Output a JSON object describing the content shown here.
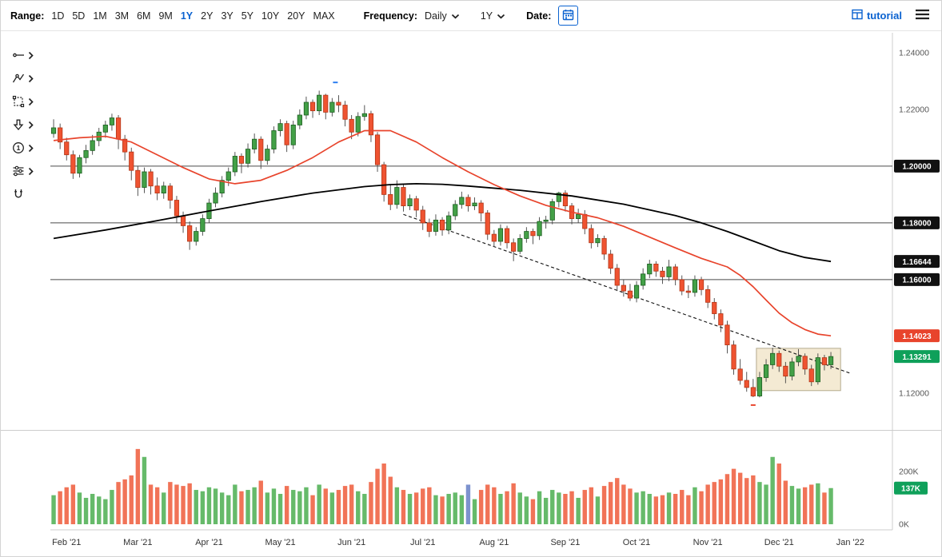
{
  "toolbar": {
    "range_label": "Range:",
    "range_options": [
      "1D",
      "5D",
      "1M",
      "3M",
      "6M",
      "9M",
      "1Y",
      "2Y",
      "3Y",
      "5Y",
      "10Y",
      "20Y",
      "MAX"
    ],
    "range_active": "1Y",
    "frequency_label": "Frequency:",
    "frequency_value": "Daily",
    "period_value": "1Y",
    "date_label": "Date:",
    "tutorial_label": "tutorial"
  },
  "side_toolbar": {
    "tools": [
      "line-tool",
      "polyline-tool",
      "rectangle-tool",
      "arrow-tool",
      "number-annotation-tool",
      "sliders-tool",
      "magnet-tool"
    ]
  },
  "chart_data": {
    "type": "candlestick+volume",
    "frequency": "Daily",
    "range": "1Y",
    "colors": {
      "up": "#43a047",
      "up_dark": "#1c5e20",
      "down": "#ef5331",
      "down_dark": "#b23617",
      "vol_up": "#55b35a",
      "vol_down": "#f06445",
      "ma_fast": "#e8442c",
      "ma_slow": "#000000",
      "badge_black": "#111111",
      "badge_red": "#e8442c",
      "badge_green": "#0fa05a"
    },
    "y_axis": {
      "max": 1.247,
      "min": 1.1076,
      "ticks": [
        {
          "label": "1.24000",
          "value": 1.24
        },
        {
          "label": "1.22000",
          "value": 1.22
        },
        {
          "label": "1.12000",
          "value": 1.12
        }
      ]
    },
    "levels": [
      {
        "value": 1.2,
        "label": "1.20000"
      },
      {
        "value": 1.18,
        "label": "1.18000"
      },
      {
        "value": 1.16,
        "label": "1.16000"
      }
    ],
    "badges": [
      {
        "label": "1.20000",
        "value": 1.2,
        "color": "#111111"
      },
      {
        "label": "1.18000",
        "value": 1.18,
        "color": "#111111"
      },
      {
        "label": "1.16644",
        "value": 1.16644,
        "color": "#111111"
      },
      {
        "label": "1.16000",
        "value": 1.16,
        "color": "#111111"
      },
      {
        "label": "1.14023",
        "value": 1.14023,
        "color": "#e8442c"
      },
      {
        "label": "1.13291",
        "value": 1.13291,
        "color": "#0fa05a"
      }
    ],
    "x_axis": {
      "labels": [
        {
          "label": "Feb '21",
          "idx": 2
        },
        {
          "label": "Mar '21",
          "idx": 13
        },
        {
          "label": "Apr '21",
          "idx": 24
        },
        {
          "label": "May '21",
          "idx": 35
        },
        {
          "label": "Jun '21",
          "idx": 46
        },
        {
          "label": "Jul '21",
          "idx": 57
        },
        {
          "label": "Aug '21",
          "idx": 68
        },
        {
          "label": "Sep '21",
          "idx": 79
        },
        {
          "label": "Oct '21",
          "idx": 90
        },
        {
          "label": "Nov '21",
          "idx": 101
        },
        {
          "label": "Dec '21",
          "idx": 112
        },
        {
          "label": "Jan '22",
          "idx": 123
        }
      ]
    },
    "trendline": {
      "start": {
        "idx": 54,
        "price": 1.183
      },
      "end": {
        "idx": 123,
        "price": 1.127
      }
    },
    "box": {
      "idx1": 108.5,
      "idx2": 121.5,
      "top": 1.1358,
      "bottom": 1.1209
    },
    "markers": [
      {
        "idx": 43.5,
        "price": 1.2295,
        "color": "#2d7ff0"
      },
      {
        "idx": 108,
        "price": 1.1158,
        "color": "#e8442c"
      }
    ],
    "ma_red": {
      "last_label": "1.14023",
      "points": [
        [
          0,
          1.209
        ],
        [
          4,
          1.21
        ],
        [
          8,
          1.2105
        ],
        [
          12,
          1.2085
        ],
        [
          16,
          1.204
        ],
        [
          20,
          1.1995
        ],
        [
          24,
          1.1955
        ],
        [
          28,
          1.1938
        ],
        [
          32,
          1.195
        ],
        [
          36,
          1.1985
        ],
        [
          40,
          1.203
        ],
        [
          44,
          1.2085
        ],
        [
          48,
          1.2125
        ],
        [
          52,
          1.2125
        ],
        [
          56,
          1.2085
        ],
        [
          60,
          1.203
        ],
        [
          64,
          1.198
        ],
        [
          68,
          1.1935
        ],
        [
          72,
          1.1895
        ],
        [
          76,
          1.1862
        ],
        [
          80,
          1.1838
        ],
        [
          84,
          1.1818
        ],
        [
          88,
          1.1788
        ],
        [
          92,
          1.175
        ],
        [
          96,
          1.1712
        ],
        [
          100,
          1.1675
        ],
        [
          104,
          1.1645
        ],
        [
          106,
          1.1615
        ],
        [
          108,
          1.1575
        ],
        [
          110,
          1.1528
        ],
        [
          112,
          1.1482
        ],
        [
          114,
          1.1448
        ],
        [
          116,
          1.1424
        ],
        [
          118,
          1.1408
        ],
        [
          120,
          1.1402
        ]
      ]
    },
    "ma_black": {
      "last_label": "1.16644",
      "points": [
        [
          0,
          1.1745
        ],
        [
          8,
          1.1775
        ],
        [
          16,
          1.1808
        ],
        [
          24,
          1.1842
        ],
        [
          32,
          1.1875
        ],
        [
          40,
          1.1905
        ],
        [
          48,
          1.1928
        ],
        [
          52,
          1.1935
        ],
        [
          56,
          1.1938
        ],
        [
          60,
          1.1936
        ],
        [
          64,
          1.193
        ],
        [
          72,
          1.1915
        ],
        [
          80,
          1.1895
        ],
        [
          88,
          1.1866
        ],
        [
          96,
          1.1826
        ],
        [
          100,
          1.18
        ],
        [
          104,
          1.177
        ],
        [
          108,
          1.1736
        ],
        [
          112,
          1.1702
        ],
        [
          116,
          1.1678
        ],
        [
          120,
          1.1664
        ]
      ]
    },
    "volume": {
      "grid_label": "200K",
      "grid_value": 200,
      "zero_label": "0K",
      "last_label": "137K",
      "last_value": 137,
      "scale_max": 333,
      "neutral_idx": 64,
      "neutral_color": "#6f86c9"
    },
    "candles": [
      [
        1.2115,
        1.2165,
        1.21,
        1.2135,
        110
      ],
      [
        1.2135,
        1.215,
        1.206,
        1.2085,
        125
      ],
      [
        1.2085,
        1.21,
        1.202,
        1.204,
        140
      ],
      [
        1.204,
        1.2055,
        1.1955,
        1.1975,
        150
      ],
      [
        1.1975,
        1.204,
        1.196,
        1.203,
        120
      ],
      [
        1.203,
        1.2075,
        1.201,
        1.2055,
        100
      ],
      [
        1.2055,
        1.211,
        1.204,
        1.209,
        115
      ],
      [
        1.209,
        1.2135,
        1.207,
        1.212,
        105
      ],
      [
        1.212,
        1.216,
        1.21,
        1.2145,
        95
      ],
      [
        1.2145,
        1.2185,
        1.2125,
        1.217,
        130
      ],
      [
        1.217,
        1.218,
        1.206,
        1.2095,
        160
      ],
      [
        1.2095,
        1.211,
        1.202,
        1.205,
        170
      ],
      [
        1.205,
        1.2065,
        1.195,
        1.1985,
        185
      ],
      [
        1.1985,
        1.2,
        1.1895,
        1.1925,
        285
      ],
      [
        1.1925,
        1.1995,
        1.1905,
        1.198,
        255
      ],
      [
        1.198,
        1.199,
        1.19,
        1.193,
        150
      ],
      [
        1.193,
        1.196,
        1.188,
        1.1905,
        140
      ],
      [
        1.1905,
        1.1945,
        1.1885,
        1.193,
        120
      ],
      [
        1.193,
        1.194,
        1.185,
        1.188,
        160
      ],
      [
        1.188,
        1.1895,
        1.18,
        1.1825,
        150
      ],
      [
        1.1825,
        1.184,
        1.1765,
        1.179,
        145
      ],
      [
        1.179,
        1.1805,
        1.1705,
        1.1735,
        155
      ],
      [
        1.1735,
        1.1785,
        1.172,
        1.177,
        130
      ],
      [
        1.177,
        1.183,
        1.1755,
        1.1815,
        125
      ],
      [
        1.1815,
        1.1885,
        1.18,
        1.187,
        140
      ],
      [
        1.187,
        1.1925,
        1.1855,
        1.1905,
        135
      ],
      [
        1.1905,
        1.1965,
        1.189,
        1.195,
        120
      ],
      [
        1.195,
        1.1995,
        1.193,
        1.198,
        110
      ],
      [
        1.198,
        1.205,
        1.1965,
        1.2035,
        150
      ],
      [
        1.2035,
        1.2045,
        1.1975,
        1.201,
        125
      ],
      [
        1.201,
        1.208,
        1.1995,
        1.206,
        130
      ],
      [
        1.206,
        1.2115,
        1.2045,
        1.2095,
        140
      ],
      [
        1.2095,
        1.2105,
        1.199,
        1.202,
        165
      ],
      [
        1.202,
        1.2075,
        1.2005,
        1.206,
        120
      ],
      [
        1.206,
        1.214,
        1.2045,
        1.2125,
        135
      ],
      [
        1.2125,
        1.2165,
        1.2105,
        1.215,
        115
      ],
      [
        1.215,
        1.216,
        1.205,
        1.2075,
        145
      ],
      [
        1.2075,
        1.216,
        1.206,
        1.2145,
        130
      ],
      [
        1.2145,
        1.22,
        1.213,
        1.218,
        125
      ],
      [
        1.218,
        1.2245,
        1.2165,
        1.2225,
        140
      ],
      [
        1.2225,
        1.2235,
        1.217,
        1.2195,
        110
      ],
      [
        1.2195,
        1.2266,
        1.218,
        1.225,
        150
      ],
      [
        1.225,
        1.2255,
        1.2165,
        1.219,
        135
      ],
      [
        1.219,
        1.224,
        1.2175,
        1.2225,
        120
      ],
      [
        1.2225,
        1.225,
        1.219,
        1.2215,
        130
      ],
      [
        1.2215,
        1.223,
        1.214,
        1.2165,
        145
      ],
      [
        1.2165,
        1.218,
        1.2095,
        1.212,
        150
      ],
      [
        1.212,
        1.219,
        1.2105,
        1.2175,
        125
      ],
      [
        1.2175,
        1.2215,
        1.216,
        1.2185,
        115
      ],
      [
        1.2185,
        1.2195,
        1.2085,
        1.211,
        160
      ],
      [
        1.211,
        1.212,
        1.198,
        1.2005,
        210
      ],
      [
        1.2005,
        1.2015,
        1.1875,
        1.19,
        230
      ],
      [
        1.19,
        1.1935,
        1.1845,
        1.1865,
        180
      ],
      [
        1.1865,
        1.195,
        1.185,
        1.1925,
        140
      ],
      [
        1.1925,
        1.1935,
        1.184,
        1.186,
        130
      ],
      [
        1.186,
        1.19,
        1.1845,
        1.1885,
        115
      ],
      [
        1.1885,
        1.1895,
        1.182,
        1.1845,
        120
      ],
      [
        1.1845,
        1.186,
        1.1775,
        1.18,
        135
      ],
      [
        1.18,
        1.1815,
        1.175,
        1.177,
        140
      ],
      [
        1.177,
        1.183,
        1.1755,
        1.181,
        110
      ],
      [
        1.181,
        1.182,
        1.1755,
        1.1775,
        105
      ],
      [
        1.1775,
        1.184,
        1.176,
        1.1825,
        115
      ],
      [
        1.1825,
        1.188,
        1.181,
        1.1865,
        120
      ],
      [
        1.1865,
        1.191,
        1.185,
        1.189,
        110
      ],
      [
        1.189,
        1.19,
        1.184,
        1.186,
        150
      ],
      [
        1.186,
        1.189,
        1.1845,
        1.187,
        95
      ],
      [
        1.187,
        1.188,
        1.1805,
        1.1835,
        130
      ],
      [
        1.1835,
        1.1845,
        1.174,
        1.176,
        150
      ],
      [
        1.176,
        1.1775,
        1.1715,
        1.1735,
        140
      ],
      [
        1.1735,
        1.1795,
        1.172,
        1.178,
        115
      ],
      [
        1.178,
        1.179,
        1.171,
        1.173,
        125
      ],
      [
        1.173,
        1.1745,
        1.1665,
        1.17,
        155
      ],
      [
        1.17,
        1.176,
        1.169,
        1.1745,
        120
      ],
      [
        1.1745,
        1.1785,
        1.173,
        1.177,
        105
      ],
      [
        1.177,
        1.178,
        1.1725,
        1.1755,
        95
      ],
      [
        1.1755,
        1.182,
        1.174,
        1.1805,
        125
      ],
      [
        1.1805,
        1.1825,
        1.178,
        1.181,
        100
      ],
      [
        1.181,
        1.1885,
        1.1795,
        1.1875,
        130
      ],
      [
        1.1875,
        1.191,
        1.1855,
        1.1905,
        120
      ],
      [
        1.1905,
        1.1915,
        1.184,
        1.186,
        115
      ],
      [
        1.186,
        1.187,
        1.1795,
        1.1815,
        125
      ],
      [
        1.1815,
        1.185,
        1.18,
        1.183,
        100
      ],
      [
        1.183,
        1.1845,
        1.176,
        1.178,
        130
      ],
      [
        1.178,
        1.1795,
        1.171,
        1.173,
        140
      ],
      [
        1.173,
        1.176,
        1.1715,
        1.1745,
        105
      ],
      [
        1.1745,
        1.1755,
        1.167,
        1.169,
        145
      ],
      [
        1.169,
        1.1705,
        1.162,
        1.164,
        160
      ],
      [
        1.164,
        1.1655,
        1.156,
        1.158,
        175
      ],
      [
        1.158,
        1.16,
        1.154,
        1.156,
        150
      ],
      [
        1.156,
        1.1585,
        1.1525,
        1.1535,
        135
      ],
      [
        1.1535,
        1.1595,
        1.152,
        1.158,
        120
      ],
      [
        1.158,
        1.164,
        1.1565,
        1.162,
        125
      ],
      [
        1.162,
        1.167,
        1.1605,
        1.1655,
        115
      ],
      [
        1.1655,
        1.1665,
        1.161,
        1.163,
        105
      ],
      [
        1.163,
        1.1645,
        1.1585,
        1.161,
        110
      ],
      [
        1.161,
        1.167,
        1.1595,
        1.1645,
        120
      ],
      [
        1.1645,
        1.1655,
        1.158,
        1.16,
        115
      ],
      [
        1.16,
        1.1615,
        1.1545,
        1.156,
        130
      ],
      [
        1.156,
        1.158,
        1.1535,
        1.1555,
        110
      ],
      [
        1.1555,
        1.1615,
        1.154,
        1.16,
        140
      ],
      [
        1.16,
        1.161,
        1.1545,
        1.1565,
        125
      ],
      [
        1.1565,
        1.158,
        1.15,
        1.152,
        150
      ],
      [
        1.152,
        1.1535,
        1.146,
        1.148,
        160
      ],
      [
        1.148,
        1.1495,
        1.1415,
        1.144,
        170
      ],
      [
        1.144,
        1.1455,
        1.134,
        1.137,
        190
      ],
      [
        1.137,
        1.1385,
        1.1265,
        1.1285,
        210
      ],
      [
        1.1285,
        1.132,
        1.123,
        1.1245,
        195
      ],
      [
        1.1245,
        1.1275,
        1.1205,
        1.122,
        175
      ],
      [
        1.122,
        1.125,
        1.1186,
        1.119,
        185
      ],
      [
        1.119,
        1.1275,
        1.1185,
        1.1255,
        160
      ],
      [
        1.1255,
        1.132,
        1.124,
        1.13,
        150
      ],
      [
        1.13,
        1.136,
        1.1285,
        1.134,
        255
      ],
      [
        1.134,
        1.135,
        1.1275,
        1.1295,
        230
      ],
      [
        1.1295,
        1.131,
        1.1235,
        1.126,
        165
      ],
      [
        1.126,
        1.1325,
        1.1245,
        1.131,
        145
      ],
      [
        1.131,
        1.1355,
        1.1295,
        1.133,
        135
      ],
      [
        1.133,
        1.134,
        1.1265,
        1.1285,
        140
      ],
      [
        1.1285,
        1.13,
        1.1225,
        1.124,
        150
      ],
      [
        1.124,
        1.134,
        1.123,
        1.1325,
        155
      ],
      [
        1.1325,
        1.1335,
        1.128,
        1.13,
        120
      ],
      [
        1.13,
        1.1345,
        1.1285,
        1.1329,
        137
      ]
    ]
  }
}
